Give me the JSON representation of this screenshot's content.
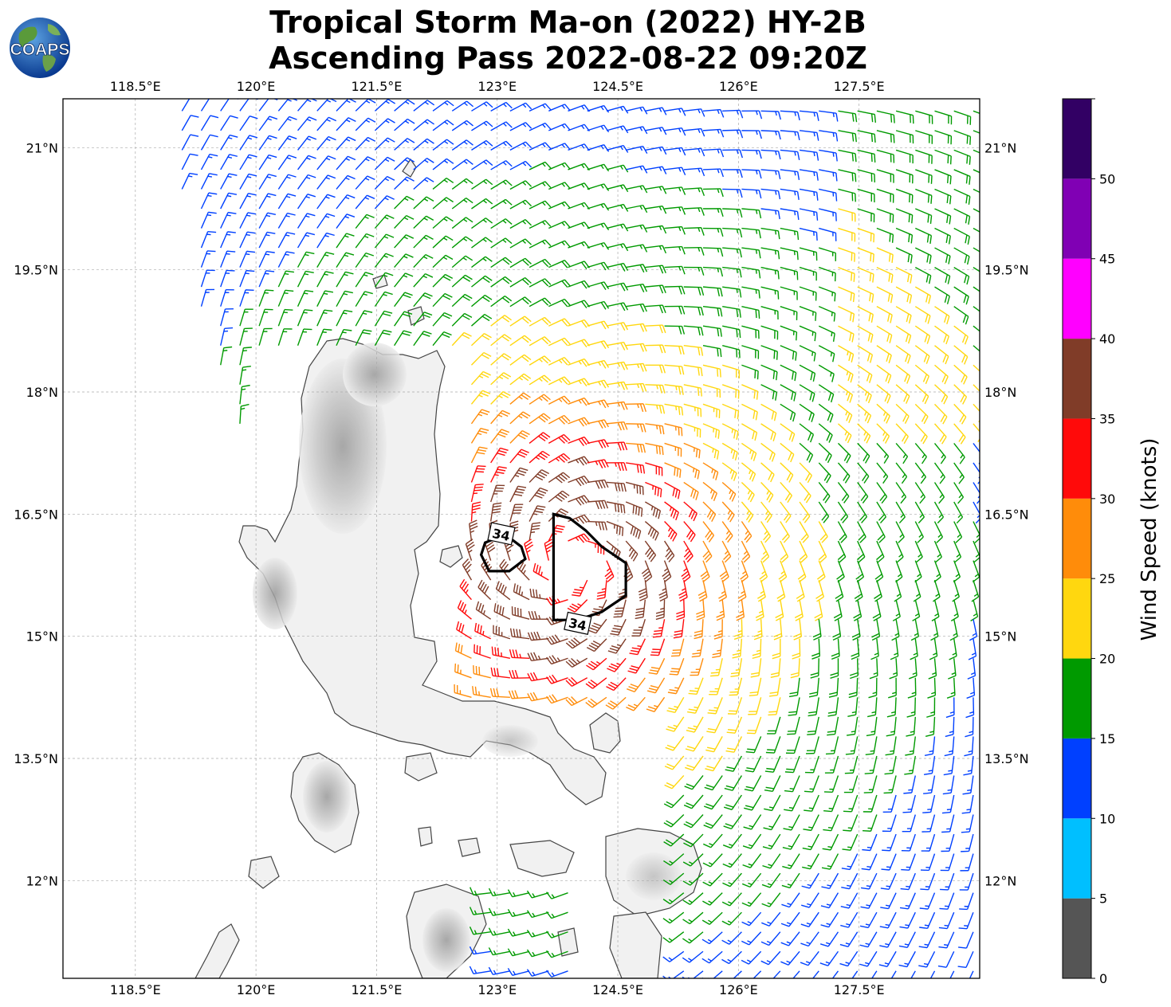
{
  "title": {
    "line1": "Tropical Storm Ma-on (2022) HY-2B",
    "line2": "Ascending Pass 2022-08-22 09:20Z"
  },
  "logo": {
    "text": "COAPS",
    "icon": "globe-logo-icon"
  },
  "map": {
    "lon_range": [
      117.6,
      129.0
    ],
    "lat_range": [
      10.8,
      21.6
    ],
    "lon_ticks": [
      {
        "value": 118.5,
        "label": "118.5°E"
      },
      {
        "value": 120.0,
        "label": "120°E"
      },
      {
        "value": 121.5,
        "label": "121.5°E"
      },
      {
        "value": 123.0,
        "label": "123°E"
      },
      {
        "value": 124.5,
        "label": "124.5°E"
      },
      {
        "value": 126.0,
        "label": "126°E"
      },
      {
        "value": 127.5,
        "label": "127.5°E"
      }
    ],
    "lat_ticks": [
      {
        "value": 21.0,
        "label": "21°N"
      },
      {
        "value": 19.5,
        "label": "19.5°N"
      },
      {
        "value": 18.0,
        "label": "18°N"
      },
      {
        "value": 16.5,
        "label": "16.5°N"
      },
      {
        "value": 15.0,
        "label": "15°N"
      },
      {
        "value": 13.5,
        "label": "13.5°N"
      },
      {
        "value": 12.0,
        "label": "12°N"
      }
    ],
    "grid": true,
    "storm_center": {
      "lon": 123.9,
      "lat": 15.9
    },
    "contour_34kt": {
      "label": "34",
      "polygons": [
        [
          [
            123.7,
            16.5
          ],
          [
            123.9,
            16.45
          ],
          [
            124.1,
            16.3
          ],
          [
            124.3,
            16.1
          ],
          [
            124.6,
            15.9
          ],
          [
            124.6,
            15.5
          ],
          [
            124.3,
            15.3
          ],
          [
            124.0,
            15.2
          ],
          [
            123.7,
            15.2
          ],
          [
            123.7,
            15.6
          ],
          [
            123.7,
            16.0
          ]
        ],
        [
          [
            122.85,
            16.15
          ],
          [
            123.1,
            16.25
          ],
          [
            123.3,
            16.1
          ],
          [
            123.35,
            15.95
          ],
          [
            123.15,
            15.8
          ],
          [
            122.9,
            15.8
          ],
          [
            122.8,
            16.0
          ]
        ]
      ]
    }
  },
  "colorbar": {
    "label": "Wind Speed (knots)",
    "range": [
      0,
      55
    ],
    "bins": [
      {
        "min": 0,
        "max": 5,
        "color": "#555555"
      },
      {
        "min": 5,
        "max": 10,
        "color": "#00bfff"
      },
      {
        "min": 10,
        "max": 15,
        "color": "#0040ff"
      },
      {
        "min": 15,
        "max": 20,
        "color": "#009a00"
      },
      {
        "min": 20,
        "max": 25,
        "color": "#ffd70f"
      },
      {
        "min": 25,
        "max": 30,
        "color": "#ff8c0a"
      },
      {
        "min": 30,
        "max": 35,
        "color": "#ff0a0a"
      },
      {
        "min": 35,
        "max": 40,
        "color": "#803c28"
      },
      {
        "min": 40,
        "max": 45,
        "color": "#ff00ff"
      },
      {
        "min": 45,
        "max": 50,
        "color": "#8000b4"
      },
      {
        "min": 50,
        "max": 55,
        "color": "#320064"
      }
    ],
    "tick_labels": [
      "0",
      "5",
      "10",
      "15",
      "20",
      "25",
      "30",
      "35",
      "40",
      "45",
      "50"
    ]
  }
}
